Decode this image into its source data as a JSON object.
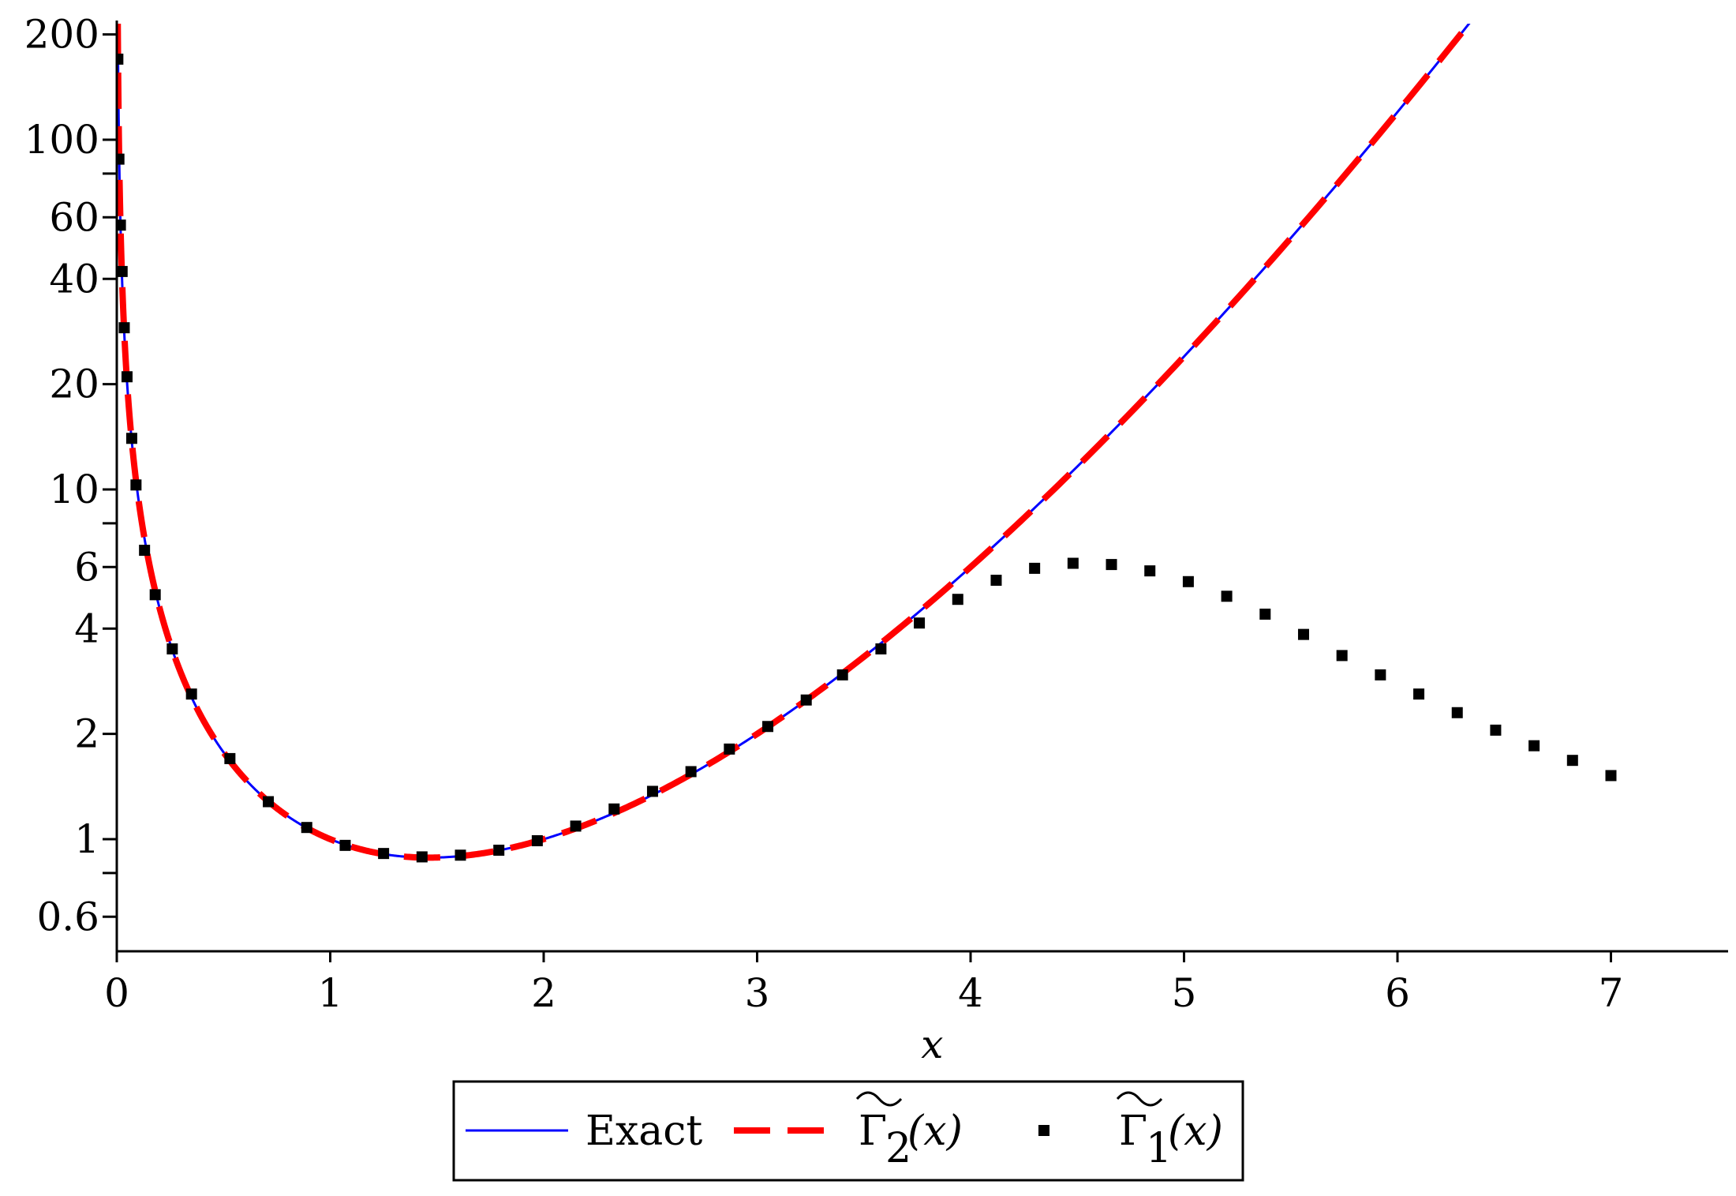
{
  "chart_data": {
    "type": "line",
    "xlabel": "x",
    "ylabel": "",
    "xlim": [
      0,
      7.6
    ],
    "ylim": [
      0.5,
      215
    ],
    "yscale": "log",
    "grid": false,
    "legend_position": "bottom-center",
    "x_ticks": [
      {
        "value": 0,
        "label": "0"
      },
      {
        "value": 1,
        "label": "1"
      },
      {
        "value": 2,
        "label": "2"
      },
      {
        "value": 3,
        "label": "3"
      },
      {
        "value": 4,
        "label": "4"
      },
      {
        "value": 5,
        "label": "5"
      },
      {
        "value": 6,
        "label": "6"
      },
      {
        "value": 7,
        "label": "7"
      }
    ],
    "y_ticks_major": [
      {
        "value": 0.6,
        "label": "0.6"
      },
      {
        "value": 1,
        "label": "1"
      },
      {
        "value": 2,
        "label": "2"
      },
      {
        "value": 4,
        "label": "4"
      },
      {
        "value": 6,
        "label": "6"
      },
      {
        "value": 10,
        "label": "10"
      },
      {
        "value": 20,
        "label": "20"
      },
      {
        "value": 40,
        "label": "40"
      },
      {
        "value": 60,
        "label": "60"
      },
      {
        "value": 100,
        "label": "100"
      },
      {
        "value": 200,
        "label": "200"
      }
    ],
    "y_ticks_minor": [
      0.8,
      8,
      80
    ],
    "series": [
      {
        "name": "Exact",
        "style": "solid",
        "color": "#0000ff",
        "function": "gamma"
      },
      {
        "name": "Γ2(x)",
        "legend_base": "Γ",
        "legend_sub": "2",
        "legend_arg": "(x)",
        "style": "dashed",
        "color": "#ff0000",
        "function": "gamma"
      },
      {
        "name": "Γ1(x)",
        "legend_base": "Γ",
        "legend_sub": "1",
        "legend_arg": "(x)",
        "style": "dotted",
        "color": "#000000",
        "x": [
          0.005,
          0.01,
          0.017,
          0.025,
          0.035,
          0.048,
          0.07,
          0.09,
          0.13,
          0.18,
          0.26,
          0.35,
          0.53,
          0.71,
          0.89,
          1.07,
          1.25,
          1.43,
          1.61,
          1.79,
          1.97,
          2.15,
          2.33,
          2.51,
          2.69,
          2.87,
          3.05,
          3.23,
          3.4,
          3.58,
          3.76,
          3.94,
          4.12,
          4.3,
          4.48,
          4.66,
          4.84,
          5.02,
          5.2,
          5.38,
          5.56,
          5.74,
          5.92,
          6.1,
          6.28,
          6.46,
          6.64,
          6.82,
          7.0
        ],
        "y": [
          170,
          88,
          57,
          42,
          29,
          21,
          14,
          10.3,
          6.7,
          5.0,
          3.5,
          2.6,
          1.7,
          1.28,
          1.08,
          0.96,
          0.91,
          0.89,
          0.9,
          0.93,
          0.99,
          1.09,
          1.22,
          1.37,
          1.56,
          1.81,
          2.1,
          2.5,
          2.95,
          3.5,
          4.15,
          4.85,
          5.5,
          5.95,
          6.15,
          6.1,
          5.85,
          5.45,
          4.95,
          4.4,
          3.85,
          3.35,
          2.95,
          2.6,
          2.3,
          2.05,
          1.85,
          1.68,
          1.52
        ]
      }
    ]
  }
}
